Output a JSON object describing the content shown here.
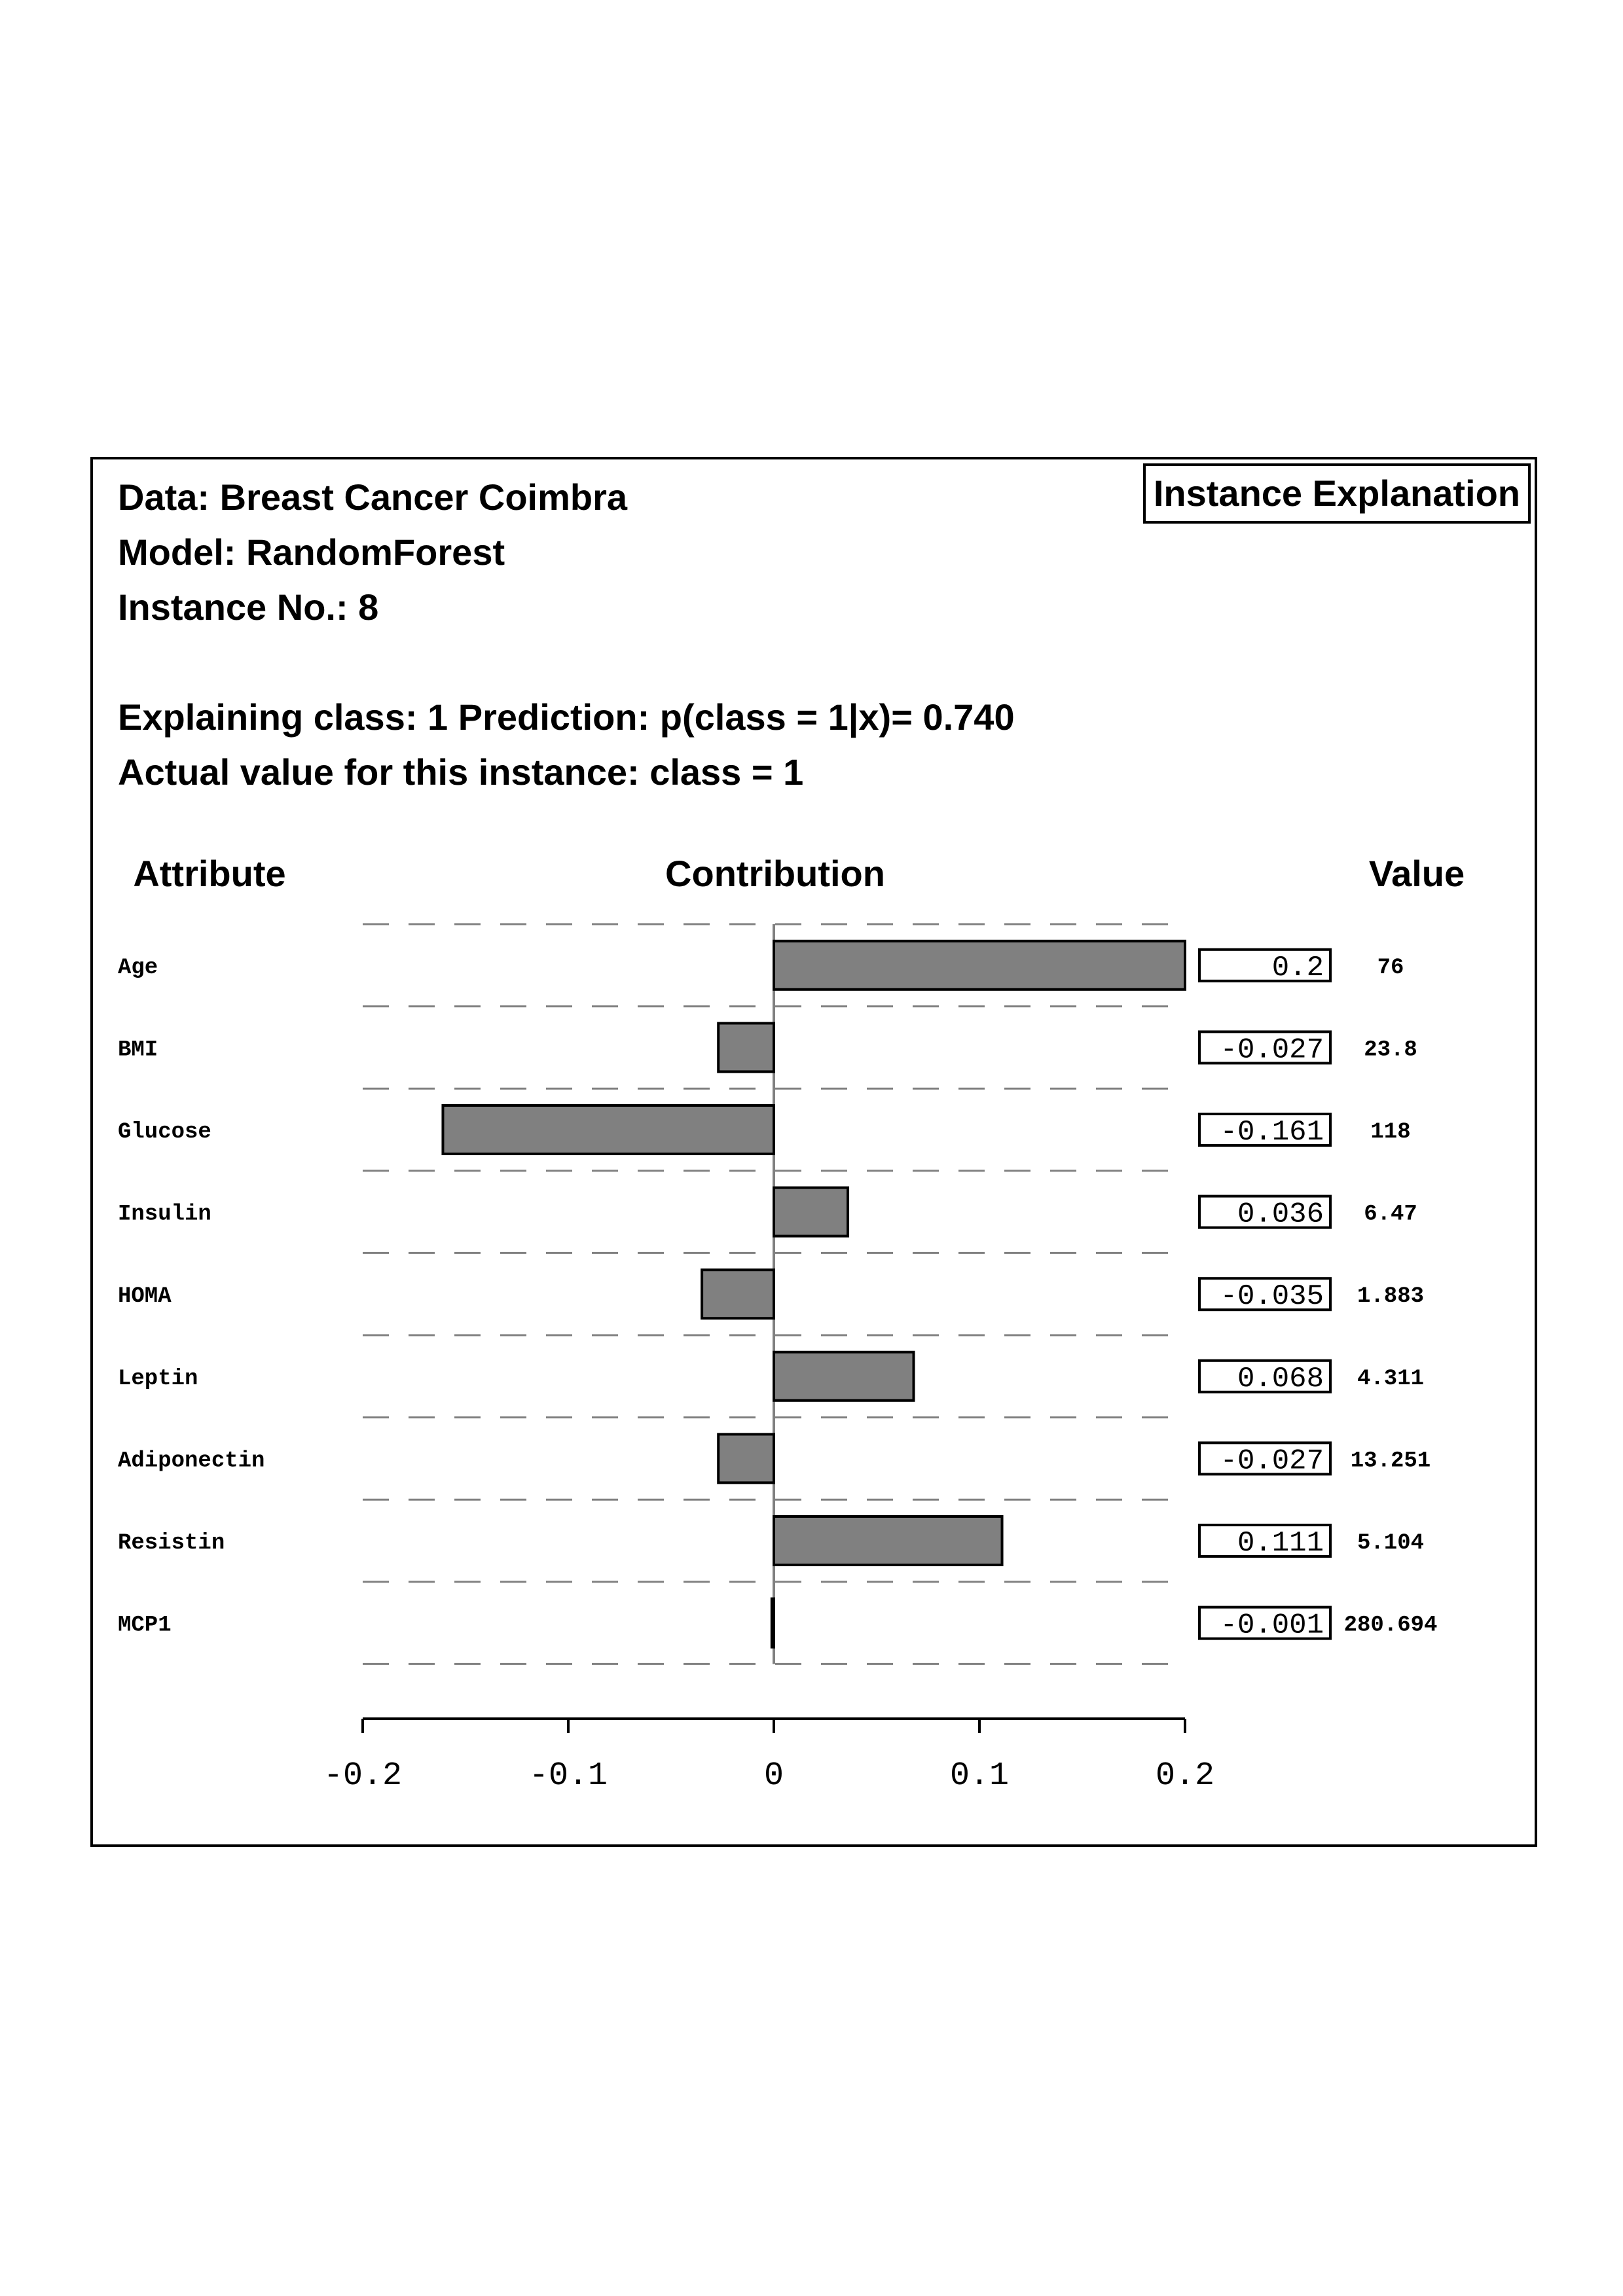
{
  "header": {
    "data_line": "Data: Breast Cancer Coimbra",
    "model_line": "Model: RandomForest",
    "instance_line": "Instance No.: 8",
    "explain_line": "Explaining class: 1 Prediction: p(class = 1|x)= 0.740",
    "actual_line": "Actual value for this instance: class = 1",
    "badge": "Instance Explanation"
  },
  "columns": {
    "attribute": "Attribute",
    "contribution": "Contribution",
    "value": "Value"
  },
  "colors": {
    "bar_fill": "#808080",
    "bar_stroke": "#000000",
    "grid": "#808080",
    "zero_line": "#808080"
  },
  "chart_data": {
    "type": "bar",
    "orientation": "horizontal",
    "categories": [
      "Age",
      "BMI",
      "Glucose",
      "Insulin",
      "HOMA",
      "Leptin",
      "Adiponectin",
      "Resistin",
      "MCP1"
    ],
    "values": [
      0.2,
      -0.027,
      -0.161,
      0.036,
      -0.035,
      0.068,
      -0.027,
      0.111,
      -0.001
    ],
    "value_labels": [
      "0.2",
      "-0.027",
      "-0.161",
      "0.036",
      "-0.035",
      "0.068",
      "-0.027",
      "0.111",
      "-0.001"
    ],
    "attribute_values": [
      "76",
      "23.8",
      "118",
      "6.47",
      "1.883",
      "4.311",
      "13.251",
      "5.104",
      "280.694"
    ],
    "xlim": [
      -0.2,
      0.2
    ],
    "xticks": [
      -0.2,
      -0.1,
      0,
      0.1,
      0.2
    ],
    "xtick_labels": [
      "-0.2",
      "-0.1",
      "0",
      "0.1",
      "0.2"
    ],
    "grid": "dashed horizontal separators between rows"
  }
}
